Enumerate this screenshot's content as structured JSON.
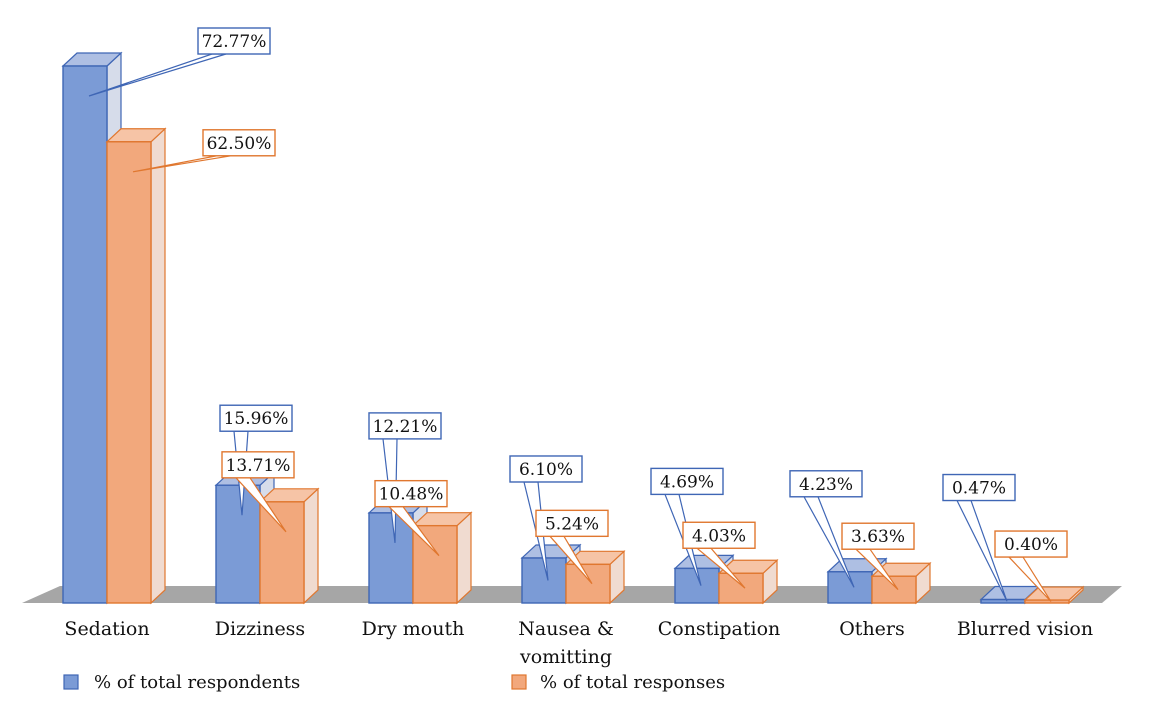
{
  "chart_data": {
    "type": "bar",
    "categories": [
      "Sedation",
      "Dizziness",
      "Dry mouth",
      "Nausea & vomitting",
      "Constipation",
      "Others",
      "Blurred vision"
    ],
    "series": [
      {
        "name": "% of total respondents",
        "values": [
          72.77,
          15.96,
          12.21,
          6.1,
          4.69,
          4.23,
          0.47
        ],
        "labels": [
          "72.77%",
          "15.96%",
          "12.21%",
          "6.10%",
          "4.69%",
          "4.23%",
          "0.47%"
        ],
        "color": "#7b9bd6",
        "edge": "#3f66b5"
      },
      {
        "name": "% of total responses",
        "values": [
          62.5,
          13.71,
          10.48,
          5.24,
          4.03,
          3.63,
          0.4
        ],
        "labels": [
          "62.50%",
          "13.71%",
          "10.48%",
          "5.24%",
          "4.03%",
          "3.63%",
          "0.40%"
        ],
        "color": "#f2a87c",
        "edge": "#e0772f"
      }
    ],
    "title": "",
    "xlabel": "",
    "ylabel": "",
    "ylim": [
      0,
      80
    ],
    "grid": false,
    "legend": "bottom",
    "style": "3d-clustered-columns"
  }
}
